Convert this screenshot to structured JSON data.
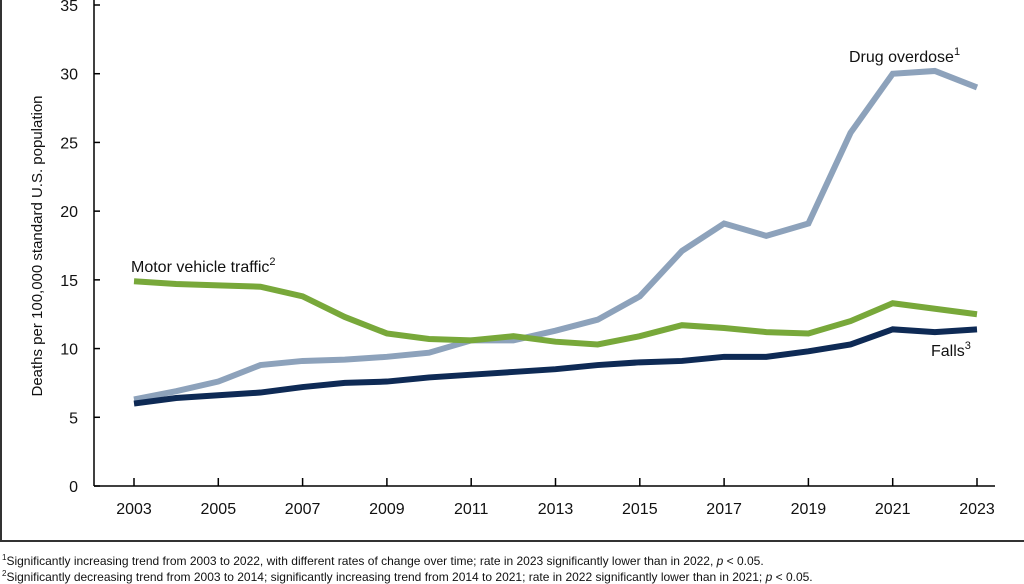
{
  "chart_data": {
    "type": "line",
    "ylabel": "Deaths per 100,000 standard U.S. population",
    "xlabel": "",
    "ylim": [
      0,
      35
    ],
    "yticks": [
      "0",
      "5",
      "10",
      "15",
      "20",
      "25",
      "30",
      "35"
    ],
    "xticks": [
      "2003",
      "2005",
      "2007",
      "2009",
      "2011",
      "2013",
      "2015",
      "2017",
      "2019",
      "2021",
      "2023"
    ],
    "x": [
      2003,
      2004,
      2005,
      2006,
      2007,
      2008,
      2009,
      2010,
      2011,
      2012,
      2013,
      2014,
      2015,
      2016,
      2017,
      2018,
      2019,
      2020,
      2021,
      2022,
      2023
    ],
    "grid": false,
    "series": [
      {
        "name": "Drug overdose",
        "sup": "1",
        "color": "#8da2bb",
        "values": [
          6.3,
          6.9,
          7.6,
          8.8,
          9.1,
          9.2,
          9.4,
          9.7,
          10.6,
          10.6,
          11.3,
          12.1,
          13.8,
          17.1,
          19.1,
          18.2,
          19.1,
          25.7,
          30.0,
          30.2,
          29.0
        ]
      },
      {
        "name": "Motor vehicle traffic",
        "sup": "2",
        "color": "#78a83a",
        "values": [
          14.9,
          14.7,
          14.6,
          14.5,
          13.8,
          12.3,
          11.1,
          10.7,
          10.6,
          10.9,
          10.5,
          10.3,
          10.9,
          11.7,
          11.5,
          11.2,
          11.1,
          12.0,
          13.3,
          12.9,
          12.5
        ]
      },
      {
        "name": "Falls",
        "sup": "3",
        "color": "#0e2a55",
        "values": [
          6.0,
          6.4,
          6.6,
          6.8,
          7.2,
          7.5,
          7.6,
          7.9,
          8.1,
          8.3,
          8.5,
          8.8,
          9.0,
          9.1,
          9.4,
          9.4,
          9.8,
          10.3,
          11.4,
          11.2,
          11.4
        ]
      }
    ]
  },
  "footnotes": [
    {
      "sup": "1",
      "text": "Significantly increasing trend from 2003 to 2022, with different rates of change over time; rate in 2023 significantly lower than in 2022, ",
      "p": "p",
      "tail": " < 0.05."
    },
    {
      "sup": "2",
      "text": "Significantly decreasing trend from 2003 to 2014; significantly increasing trend from 2014 to 2021; rate in 2022 significantly lower than in 2021; ",
      "p": "p",
      "tail": " < 0.05."
    }
  ]
}
